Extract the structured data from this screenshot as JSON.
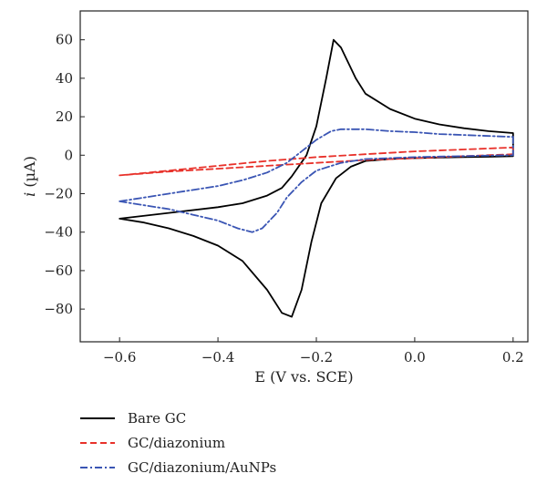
{
  "chart_data": {
    "type": "line",
    "xlabel": "E (V vs. SCE)",
    "ylabel_italic": "i",
    "ylabel_unit": " (µA)",
    "xlim": [
      -0.68,
      0.23
    ],
    "ylim": [
      -97,
      75
    ],
    "xticks": [
      -0.6,
      -0.4,
      -0.2,
      0.0,
      0.2
    ],
    "xtick_labels": [
      "−0.6",
      "−0.4",
      "−0.2",
      "0.0",
      "0.2"
    ],
    "yticks": [
      -80,
      -60,
      -40,
      -20,
      0,
      20,
      40,
      60
    ],
    "ytick_labels": [
      "−80",
      "−60",
      "−40",
      "−20",
      "0",
      "20",
      "40",
      "60"
    ],
    "legend_position": "below",
    "series": [
      {
        "name": "Bare GC",
        "color": "#000000",
        "dash": "solid",
        "x": [
          -0.6,
          -0.5,
          -0.4,
          -0.35,
          -0.3,
          -0.27,
          -0.25,
          -0.22,
          -0.2,
          -0.18,
          -0.165,
          -0.15,
          -0.12,
          -0.1,
          -0.05,
          0.0,
          0.05,
          0.1,
          0.15,
          0.2,
          0.2,
          0.15,
          0.1,
          0.05,
          0.0,
          -0.05,
          -0.1,
          -0.13,
          -0.16,
          -0.19,
          -0.21,
          -0.23,
          -0.25,
          -0.27,
          -0.3,
          -0.35,
          -0.4,
          -0.45,
          -0.5,
          -0.55,
          -0.6
        ],
        "y": [
          -33,
          -30,
          -27,
          -25,
          -21,
          -17,
          -11,
          0,
          15,
          40,
          60,
          56,
          40,
          32,
          24,
          19,
          16,
          14,
          12.5,
          11.5,
          -0.5,
          -0.8,
          -1,
          -1.2,
          -1.5,
          -2,
          -3,
          -6,
          -12,
          -25,
          -45,
          -70,
          -84,
          -82,
          -70,
          -55,
          -47,
          -42,
          -38,
          -35,
          -33
        ]
      },
      {
        "name": "GC/diazonium",
        "color": "#e8312a",
        "dash": "dashed",
        "x": [
          -0.6,
          -0.5,
          -0.4,
          -0.3,
          -0.2,
          -0.1,
          0.0,
          0.1,
          0.2,
          0.2,
          0.1,
          0.0,
          -0.1,
          -0.2,
          -0.3,
          -0.4,
          -0.5,
          -0.6
        ],
        "y": [
          -10.5,
          -8,
          -5.5,
          -3,
          -1,
          0.5,
          2,
          3,
          4,
          0.5,
          -0.5,
          -1.5,
          -2.5,
          -4,
          -5.5,
          -7,
          -8.5,
          -10.5
        ]
      },
      {
        "name": "GC/diazonium/AuNPs",
        "color": "#3a55b4",
        "dash": "dashdot",
        "x": [
          -0.6,
          -0.5,
          -0.4,
          -0.35,
          -0.3,
          -0.26,
          -0.23,
          -0.2,
          -0.17,
          -0.15,
          -0.12,
          -0.1,
          -0.05,
          0.0,
          0.05,
          0.1,
          0.15,
          0.2,
          0.2,
          0.15,
          0.1,
          0.05,
          0.0,
          -0.05,
          -0.1,
          -0.15,
          -0.2,
          -0.23,
          -0.26,
          -0.28,
          -0.31,
          -0.33,
          -0.36,
          -0.4,
          -0.45,
          -0.5,
          -0.55,
          -0.6
        ],
        "y": [
          -24,
          -20,
          -16,
          -13,
          -9,
          -4,
          2,
          8,
          12.5,
          13.5,
          13.5,
          13.5,
          12.5,
          12,
          11,
          10.5,
          10,
          9.5,
          0,
          -0.2,
          -0.5,
          -0.7,
          -1,
          -1.5,
          -2,
          -4,
          -8,
          -14,
          -22,
          -30,
          -38,
          -40,
          -38,
          -34,
          -31,
          -28,
          -26,
          -24
        ]
      }
    ]
  }
}
